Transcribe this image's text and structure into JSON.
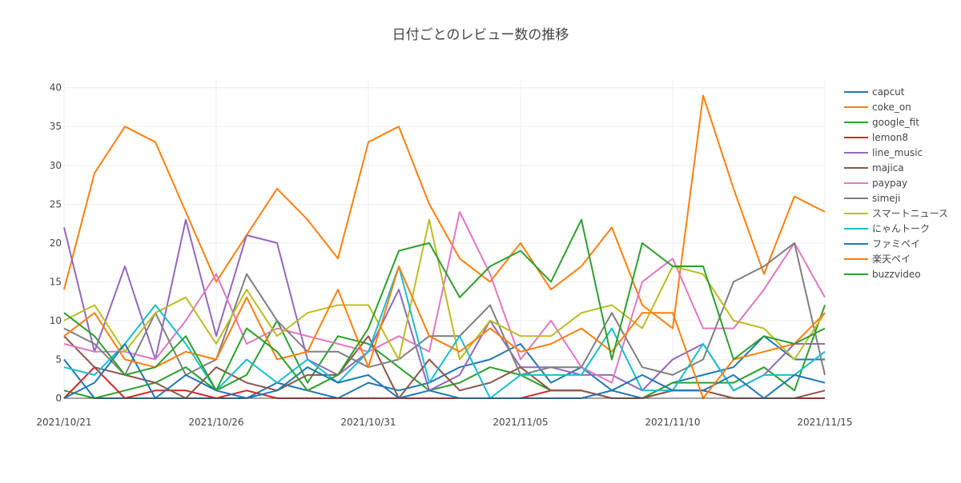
{
  "chart_data": {
    "type": "line",
    "title": "日付ごとのレビュー数の推移",
    "xlabel": "",
    "ylabel": "",
    "x": [
      "2021/10/21",
      "2021/10/22",
      "2021/10/23",
      "2021/10/24",
      "2021/10/25",
      "2021/10/26",
      "2021/10/27",
      "2021/10/28",
      "2021/10/29",
      "2021/10/30",
      "2021/10/31",
      "2021/11/01",
      "2021/11/02",
      "2021/11/03",
      "2021/11/04",
      "2021/11/05",
      "2021/11/06",
      "2021/11/07",
      "2021/11/08",
      "2021/11/09",
      "2021/11/10",
      "2021/11/11",
      "2021/11/12",
      "2021/11/13",
      "2021/11/14",
      "2021/11/15"
    ],
    "x_ticks": [
      "2021/10/21",
      "2021/10/26",
      "2021/10/31",
      "2021/11/05",
      "2021/11/10",
      "2021/11/15"
    ],
    "x_tick_indices": [
      0,
      5,
      10,
      15,
      20,
      25
    ],
    "ylim": [
      0,
      41
    ],
    "y_ticks": [
      0,
      5,
      10,
      15,
      20,
      25,
      30,
      35,
      40
    ],
    "grid": true,
    "legend_position": "right",
    "series": [
      {
        "name": "capcut",
        "color": "#1f77b4",
        "values": [
          5,
          0,
          0,
          0,
          0,
          0,
          0,
          2,
          1,
          0,
          2,
          1,
          2,
          4,
          5,
          7,
          2,
          4,
          1,
          0,
          2,
          3,
          4,
          8,
          5,
          5
        ]
      },
      {
        "name": "coke_on",
        "color": "#ff7f0e",
        "values": [
          14,
          29,
          35,
          33,
          24,
          15,
          21,
          27,
          23,
          18,
          33,
          35,
          25,
          18,
          15,
          20,
          14,
          17,
          22,
          12,
          9,
          39,
          27,
          16,
          26,
          24
        ]
      },
      {
        "name": "google_fit",
        "color": "#2ca02c",
        "values": [
          1,
          0,
          1,
          2,
          4,
          1,
          3,
          10,
          2,
          8,
          7,
          4,
          1,
          2,
          4,
          3,
          1,
          1,
          0,
          0,
          2,
          2,
          2,
          4,
          1,
          12
        ]
      },
      {
        "name": "lemon8",
        "color": "#d62728",
        "values": [
          0,
          4,
          0,
          1,
          1,
          0,
          1,
          0,
          0,
          0,
          0,
          0,
          0,
          0,
          0,
          0,
          1,
          1,
          0,
          0,
          1,
          1,
          0,
          0,
          0,
          0
        ]
      },
      {
        "name": "line_music",
        "color": "#9467bd",
        "values": [
          22,
          6,
          17,
          5,
          23,
          8,
          21,
          20,
          5,
          3,
          6,
          14,
          1,
          3,
          10,
          4,
          4,
          3,
          3,
          1,
          5,
          7,
          1,
          3,
          7,
          7
        ]
      },
      {
        "name": "majica",
        "color": "#8c564b",
        "values": [
          8,
          4,
          3,
          2,
          0,
          4,
          2,
          1,
          3,
          3,
          8,
          0,
          5,
          1,
          2,
          4,
          1,
          1,
          0,
          0,
          1,
          1,
          0,
          0,
          0,
          1
        ]
      },
      {
        "name": "paypay",
        "color": "#e377c2",
        "values": [
          7,
          6,
          6,
          5,
          10,
          16,
          7,
          9,
          8,
          7,
          6,
          8,
          6,
          24,
          16,
          5,
          10,
          4,
          2,
          15,
          18,
          9,
          9,
          14,
          20,
          13
        ]
      },
      {
        "name": "simeji",
        "color": "#7f7f7f",
        "values": [
          9,
          7,
          3,
          11,
          3,
          5,
          16,
          10,
          6,
          6,
          4,
          5,
          8,
          8,
          12,
          3,
          4,
          4,
          11,
          4,
          3,
          5,
          15,
          17,
          20,
          3
        ]
      },
      {
        "name": "スマートニュース",
        "color": "#bcbd22",
        "values": [
          10,
          12,
          6,
          11,
          13,
          7,
          14,
          8,
          11,
          12,
          12,
          5,
          23,
          5,
          10,
          8,
          8,
          11,
          12,
          9,
          17,
          16,
          10,
          9,
          5,
          11
        ]
      },
      {
        "name": "にゃんトーク",
        "color": "#17becf",
        "values": [
          4,
          3,
          7,
          12,
          7,
          1,
          5,
          2,
          5,
          2,
          6,
          17,
          2,
          8,
          0,
          3,
          3,
          3,
          9,
          1,
          1,
          7,
          1,
          3,
          3,
          6
        ]
      },
      {
        "name": "ファミペイ",
        "color": "#1f77b4",
        "values": [
          0,
          2,
          7,
          0,
          3,
          1,
          0,
          1,
          4,
          2,
          3,
          0,
          1,
          0,
          0,
          0,
          0,
          0,
          1,
          3,
          1,
          1,
          3,
          0,
          3,
          2
        ]
      },
      {
        "name": "楽天ペイ",
        "color": "#ff7f0e",
        "values": [
          8,
          11,
          5,
          4,
          6,
          5,
          13,
          5,
          6,
          14,
          4,
          17,
          8,
          6,
          9,
          6,
          7,
          9,
          6,
          11,
          11,
          0,
          5,
          6,
          7,
          11
        ]
      },
      {
        "name": "buzzvideo",
        "color": "#2ca02c",
        "values": [
          11,
          8,
          3,
          4,
          8,
          1,
          9,
          6,
          1,
          3,
          9,
          19,
          20,
          13,
          17,
          19,
          15,
          23,
          5,
          20,
          17,
          17,
          5,
          8,
          7,
          9
        ]
      }
    ]
  }
}
